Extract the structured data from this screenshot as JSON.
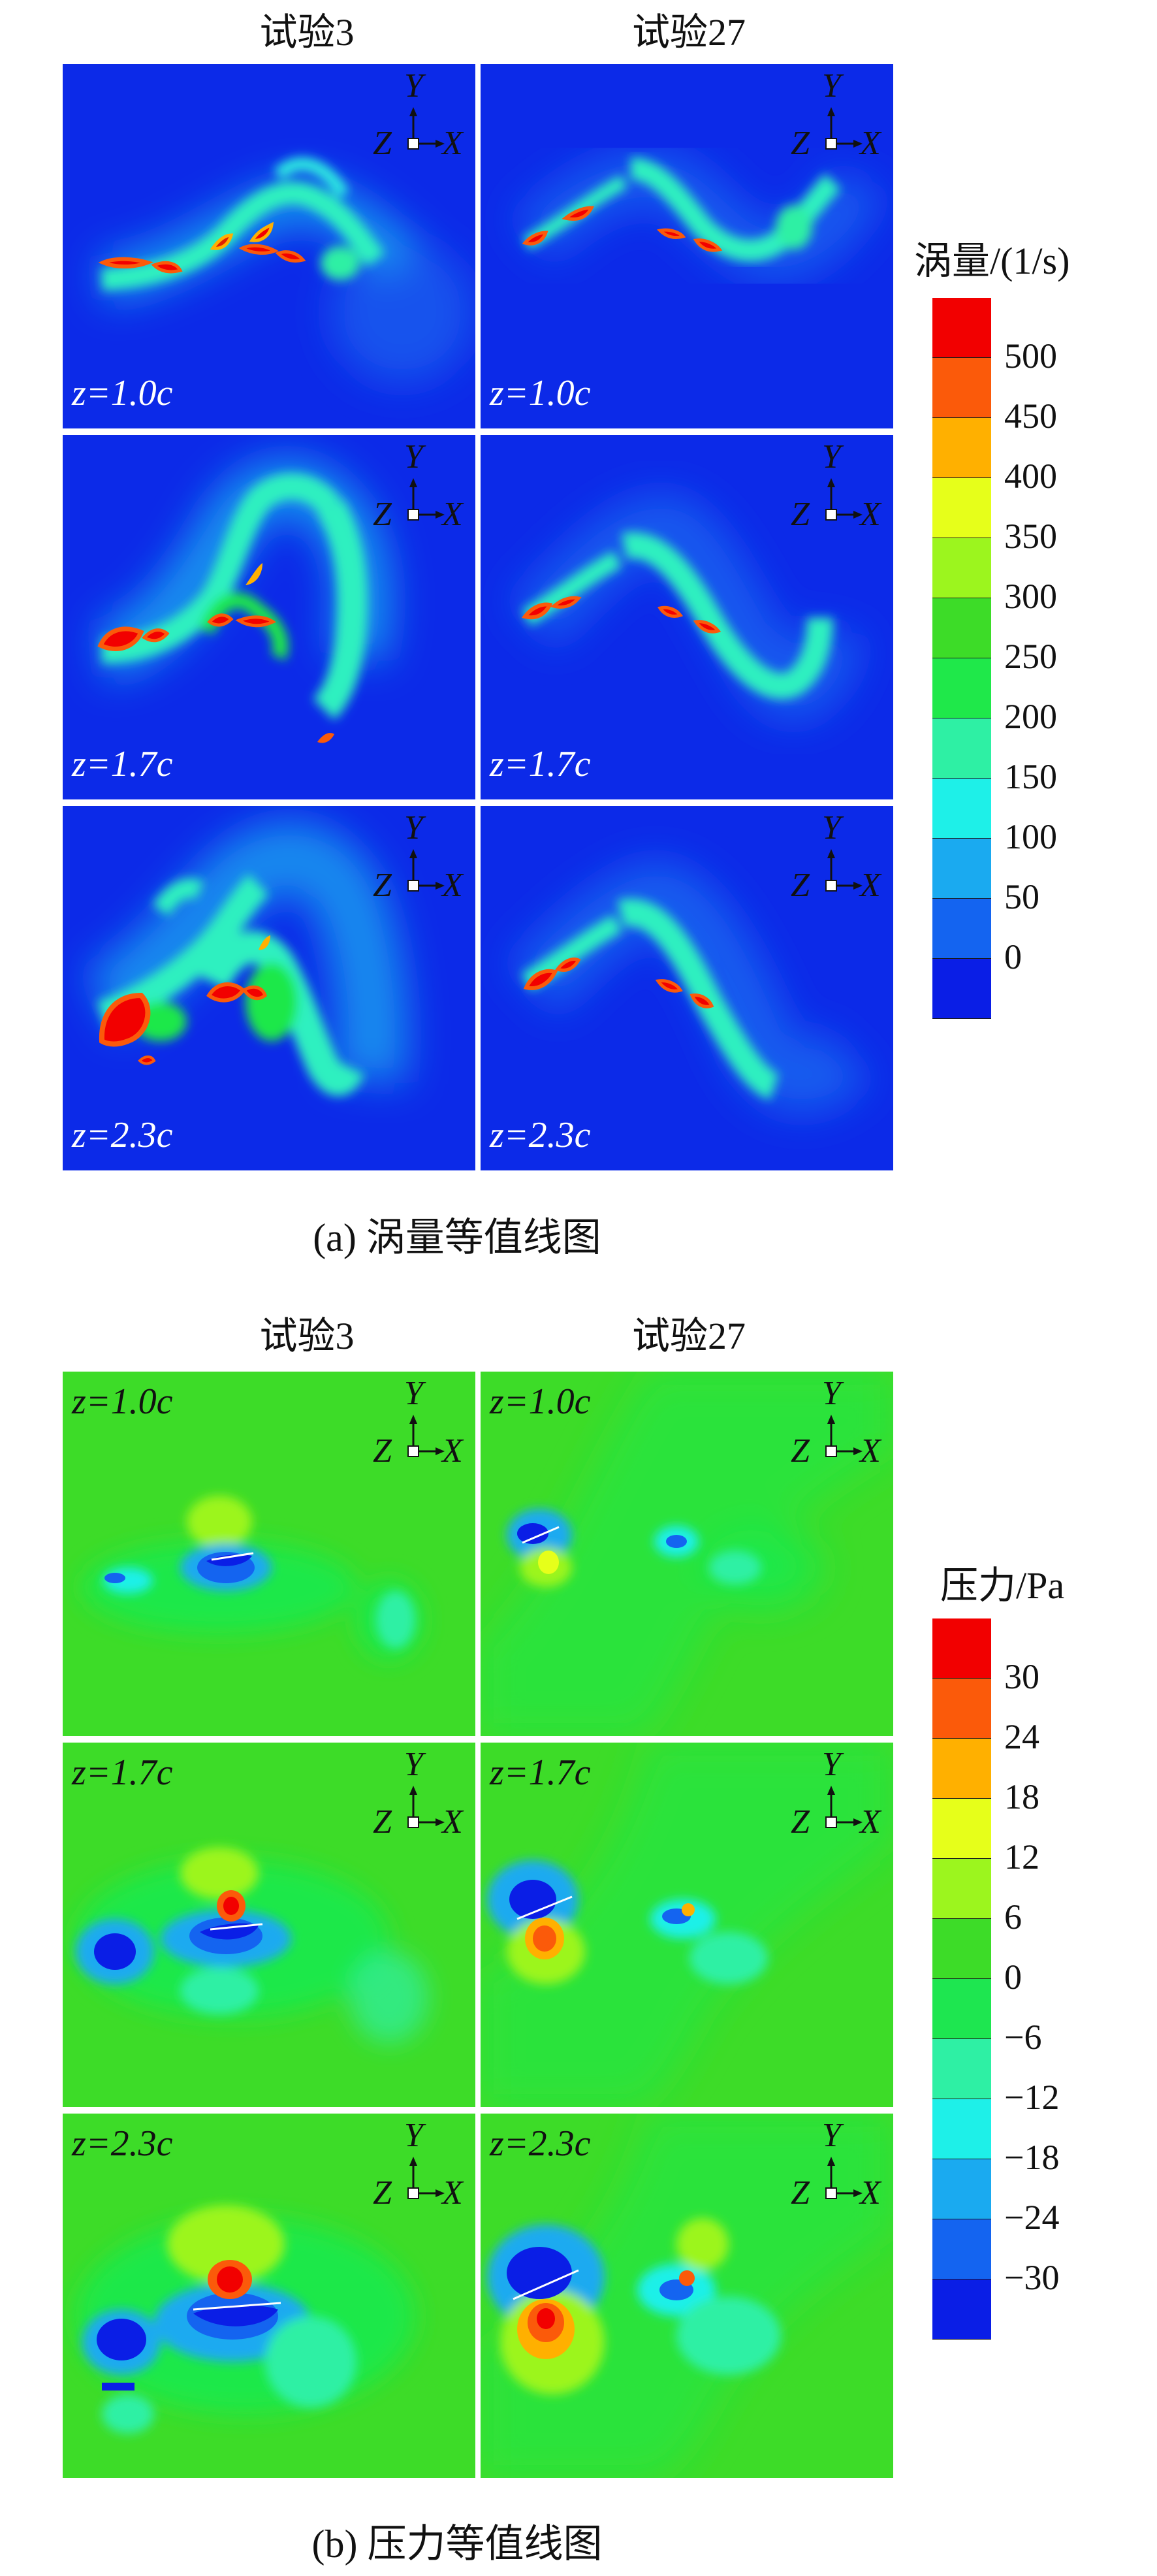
{
  "vorticity_section": {
    "col_left": "试验3",
    "col_right": "试验27",
    "caption": "(a) 涡量等值线图",
    "legend": {
      "title": "涡量/(1/s)",
      "ticks": [
        "500",
        "450",
        "400",
        "350",
        "300",
        "250",
        "200",
        "150",
        "100",
        "50",
        "0"
      ],
      "colors": [
        "#f20000",
        "#fb5a0a",
        "#ffb000",
        "#e6ff1a",
        "#9cf51e",
        "#3ddc28",
        "#1fe84a",
        "#2ef0a4",
        "#1ef0e8",
        "#1aaaf0",
        "#1464f0",
        "#0a1ee6"
      ]
    },
    "panels": [
      {
        "z": "z=1.0c"
      },
      {
        "z": "z=1.0c"
      },
      {
        "z": "z=1.7c"
      },
      {
        "z": "z=1.7c"
      },
      {
        "z": "z=2.3c"
      },
      {
        "z": "z=2.3c"
      }
    ]
  },
  "pressure_section": {
    "col_left": "试验3",
    "col_right": "试验27",
    "caption": "(b) 压力等值线图",
    "legend": {
      "title": "压力/Pa",
      "ticks": [
        "30",
        "24",
        "18",
        "12",
        "6",
        "0",
        "−6",
        "−12",
        "−18",
        "−24",
        "−30"
      ],
      "colors": [
        "#f20000",
        "#fb5a0a",
        "#ffb000",
        "#e6ff1a",
        "#9cf51e",
        "#3ddc28",
        "#1ee650",
        "#2ef0a4",
        "#1ef0e8",
        "#1aaaf0",
        "#1464f0",
        "#0a1ee6"
      ]
    },
    "panels": [
      {
        "z": "z=1.0c"
      },
      {
        "z": "z=1.0c"
      },
      {
        "z": "z=1.7c"
      },
      {
        "z": "z=1.7c"
      },
      {
        "z": "z=2.3c"
      },
      {
        "z": "z=2.3c"
      }
    ]
  },
  "axes_labels": {
    "y": "Y",
    "z": "Z",
    "x": "X"
  },
  "colors": {
    "vorticity_bg": "#0c2ae8",
    "pressure_bg": "#3ddc28"
  }
}
